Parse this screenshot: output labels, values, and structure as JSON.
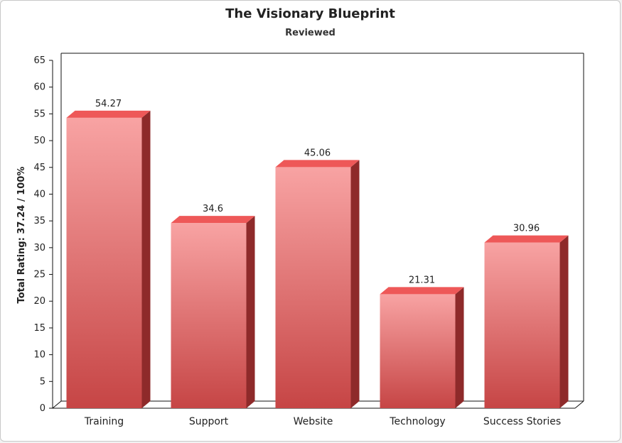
{
  "chart_data": {
    "type": "bar",
    "title": "The Visionary Blueprint",
    "subtitle": "Reviewed",
    "xlabel": "",
    "ylabel": "Total Rating: 37.24 / 100%",
    "ylim": [
      0,
      65
    ],
    "yticks": [
      0,
      5,
      10,
      15,
      20,
      25,
      30,
      35,
      40,
      45,
      50,
      55,
      60,
      65
    ],
    "categories": [
      "Training",
      "Support",
      "Website",
      "Technology",
      "Success Stories"
    ],
    "values": [
      54.27,
      34.6,
      45.06,
      21.31,
      30.96
    ],
    "data_labels": [
      "54.27",
      "34.6",
      "45.06",
      "21.31",
      "30.96"
    ],
    "grid": false,
    "legend": "none",
    "style": "3d",
    "colors": {
      "bar_top_light": "#f8a3a3",
      "bar_bottom_dark": "#c64545",
      "bar_side": "#8e2a2a",
      "bar_cap": "#ee5858"
    }
  }
}
